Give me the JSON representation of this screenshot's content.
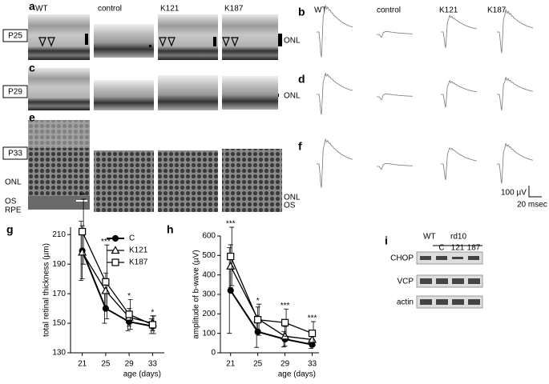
{
  "panel_labels": [
    "a",
    "b",
    "c",
    "d",
    "e",
    "f",
    "g",
    "h",
    "i"
  ],
  "oct_columns": [
    "WT",
    "control",
    "K121",
    "K187"
  ],
  "erg_columns": [
    "WT",
    "control",
    "K121",
    "K187"
  ],
  "ages": [
    "P25",
    "P29",
    "P33"
  ],
  "layer_labels": {
    "a_onl": "ONL",
    "c_onl": "ONL",
    "e_onl": "ONL",
    "e_os": "OS",
    "e_rpe": "RPE",
    "e_onl_right": "ONL",
    "e_os_right": "OS"
  },
  "erg_scale": {
    "amplitude": "100 µV",
    "time": "20 msec"
  },
  "blot": {
    "groups": [
      "WT",
      "rd10"
    ],
    "lanes": [
      "C",
      "121",
      "187"
    ],
    "rows": [
      "CHOP",
      "VCP",
      "actin"
    ]
  },
  "chart_data": [
    {
      "type": "line",
      "xlabel": "age (days)",
      "ylabel": "total retinal thickness (µm)",
      "x": [
        21,
        25,
        29,
        33
      ],
      "xticks": [
        21,
        25,
        29,
        33
      ],
      "xlim": [
        19,
        35
      ],
      "ylim": [
        130,
        215
      ],
      "yticks": [
        130,
        150,
        170,
        190,
        210
      ],
      "legend": "top-right",
      "significance": [
        "**",
        "***",
        "*",
        "*"
      ],
      "series": [
        {
          "name": "C",
          "color": "#000000",
          "marker": "circle",
          "values": [
            199,
            160,
            151,
            148
          ],
          "errors": [
            20,
            10,
            6,
            5
          ]
        },
        {
          "name": "K121",
          "color": "#000000",
          "marker": "triangle",
          "values": [
            198,
            172,
            154,
            150
          ],
          "errors": [
            18,
            12,
            6,
            5
          ]
        },
        {
          "name": "K187",
          "color": "#000000",
          "marker": "square",
          "values": [
            212,
            178,
            156,
            149
          ],
          "errors": [
            22,
            25,
            10,
            6
          ]
        }
      ]
    },
    {
      "type": "line",
      "xlabel": "age (days)",
      "ylabel": "amplitude of b-wave (µV)",
      "x": [
        21,
        25,
        29,
        33
      ],
      "xticks": [
        21,
        25,
        29,
        33
      ],
      "xlim": [
        19.5,
        34
      ],
      "ylim": [
        0,
        600
      ],
      "yticks": [
        0,
        100,
        200,
        300,
        400,
        500,
        600
      ],
      "significance": [
        "***",
        "*",
        "***",
        "***"
      ],
      "series": [
        {
          "name": "C",
          "color": "#000000",
          "marker": "circle",
          "values": [
            320,
            108,
            70,
            42
          ],
          "errors": [
            220,
            80,
            40,
            20
          ]
        },
        {
          "name": "K121",
          "color": "#000000",
          "marker": "triangle",
          "values": [
            445,
            175,
            85,
            68
          ],
          "errors": [
            110,
            60,
            50,
            30
          ]
        },
        {
          "name": "K187",
          "color": "#000000",
          "marker": "square",
          "values": [
            495,
            170,
            155,
            100
          ],
          "errors": [
            150,
            80,
            70,
            60
          ]
        }
      ]
    }
  ]
}
